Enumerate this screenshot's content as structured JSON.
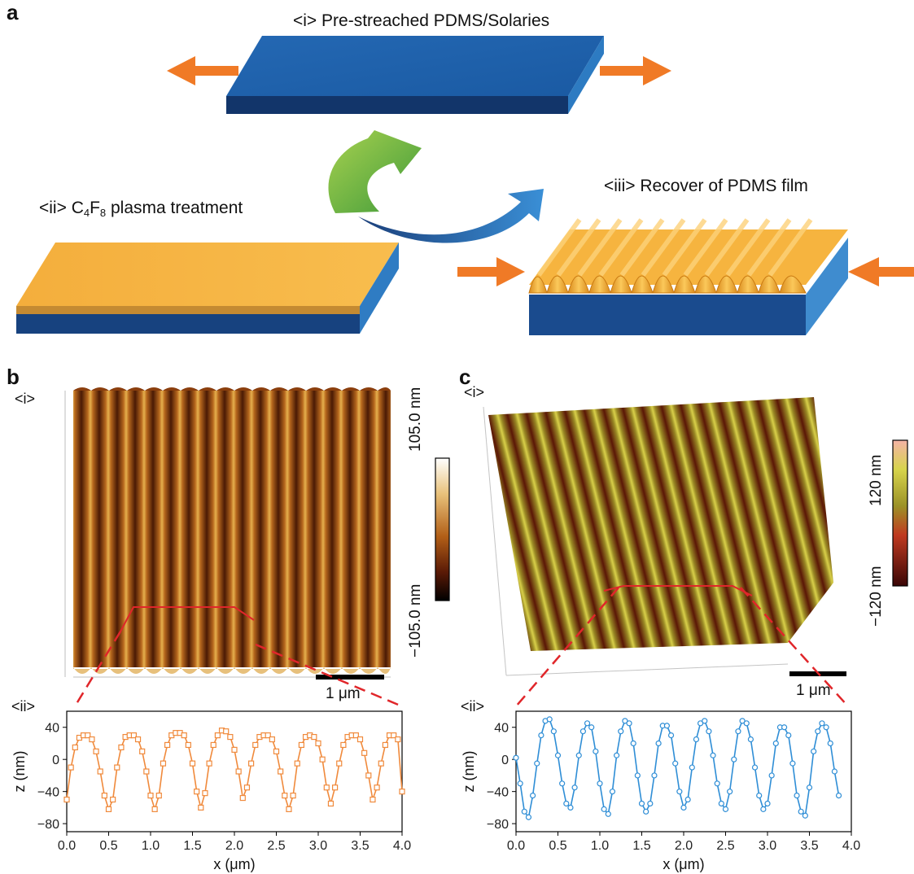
{
  "panels": {
    "a": {
      "letter": "a",
      "step1": "<i> Pre-streached PDMS/Solaries",
      "step2_prefix": "<ii> C",
      "step2_sub1": "4",
      "step2_mid": "F",
      "step2_sub2": "8",
      "step2_suffix": " plasma treatment",
      "step3": "<iii> Recover of PDMS film",
      "colors": {
        "blue_top": "#1d5fa8",
        "blue_side": "#2e76bd",
        "orange": "#f7b03d",
        "arrow": "#f07a26",
        "green": "#8cc63f"
      }
    },
    "b": {
      "letter": "b",
      "afm_tag": "<i>",
      "profile_tag": "<ii>",
      "cbar_max": "105.0 nm",
      "cbar_min": "−105.0 nm",
      "scalebar": "1 μm"
    },
    "c": {
      "letter": "c",
      "afm_tag": "<i>",
      "profile_tag": "<ii>",
      "cbar_max": "120 nm",
      "cbar_min": "−120 nm",
      "scalebar": "1 μm"
    }
  },
  "chart_data": [
    {
      "type": "line",
      "panel": "b <ii>",
      "color": "#f08a3c",
      "marker": "square",
      "x": [
        0.0,
        0.05,
        0.1,
        0.15,
        0.2,
        0.25,
        0.3,
        0.35,
        0.4,
        0.45,
        0.5,
        0.55,
        0.6,
        0.65,
        0.7,
        0.75,
        0.8,
        0.85,
        0.9,
        0.95,
        1.0,
        1.05,
        1.1,
        1.15,
        1.2,
        1.25,
        1.3,
        1.35,
        1.4,
        1.45,
        1.5,
        1.55,
        1.6,
        1.65,
        1.7,
        1.75,
        1.8,
        1.85,
        1.9,
        1.95,
        2.0,
        2.05,
        2.1,
        2.15,
        2.2,
        2.25,
        2.3,
        2.35,
        2.4,
        2.45,
        2.5,
        2.55,
        2.6,
        2.65,
        2.7,
        2.75,
        2.8,
        2.85,
        2.9,
        2.95,
        3.0,
        3.05,
        3.1,
        3.15,
        3.2,
        3.25,
        3.3,
        3.35,
        3.4,
        3.45,
        3.5,
        3.55,
        3.6,
        3.65,
        3.7,
        3.75,
        3.8,
        3.85,
        3.9,
        3.95,
        4.0
      ],
      "y": [
        -50,
        -10,
        15,
        27,
        30,
        30,
        25,
        10,
        -15,
        -45,
        -62,
        -50,
        -10,
        15,
        28,
        30,
        30,
        25,
        10,
        -15,
        -45,
        -62,
        -45,
        -5,
        18,
        30,
        33,
        33,
        30,
        18,
        -5,
        -40,
        -60,
        -42,
        -5,
        18,
        30,
        36,
        35,
        28,
        12,
        -15,
        -48,
        -35,
        -5,
        18,
        28,
        30,
        30,
        25,
        10,
        -15,
        -45,
        -62,
        -45,
        -5,
        18,
        28,
        30,
        28,
        20,
        0,
        -35,
        -55,
        -35,
        -5,
        18,
        28,
        30,
        30,
        25,
        8,
        -20,
        -50,
        -35,
        -5,
        18,
        30,
        30,
        25,
        -40
      ],
      "xlabel": "x (μm)",
      "ylabel": "z (nm)",
      "xlim": [
        0,
        4.0
      ],
      "ylim": [
        -90,
        60
      ],
      "xticks": [
        "0.0",
        "0.5",
        "1.0",
        "1.5",
        "2.0",
        "2.5",
        "3.0",
        "3.5",
        "4.0"
      ],
      "yticks": [
        "40",
        "0",
        "−40",
        "−80"
      ]
    },
    {
      "type": "line",
      "panel": "c <ii>",
      "color": "#2f8ed6",
      "marker": "circle",
      "x": [
        0.0,
        0.05,
        0.1,
        0.15,
        0.2,
        0.25,
        0.3,
        0.35,
        0.4,
        0.45,
        0.5,
        0.55,
        0.6,
        0.65,
        0.7,
        0.75,
        0.8,
        0.85,
        0.9,
        0.95,
        1.0,
        1.05,
        1.1,
        1.15,
        1.2,
        1.25,
        1.3,
        1.35,
        1.4,
        1.45,
        1.5,
        1.55,
        1.6,
        1.65,
        1.7,
        1.75,
        1.8,
        1.85,
        1.9,
        1.95,
        2.0,
        2.05,
        2.1,
        2.15,
        2.2,
        2.25,
        2.3,
        2.35,
        2.4,
        2.45,
        2.5,
        2.55,
        2.6,
        2.65,
        2.7,
        2.75,
        2.8,
        2.85,
        2.9,
        2.95,
        3.0,
        3.05,
        3.1,
        3.15,
        3.2,
        3.25,
        3.3,
        3.35,
        3.4,
        3.45,
        3.5,
        3.55,
        3.6,
        3.65,
        3.7,
        3.75,
        3.8,
        3.85
      ],
      "y": [
        2,
        -30,
        -65,
        -72,
        -45,
        -5,
        30,
        48,
        50,
        35,
        5,
        -30,
        -55,
        -60,
        -35,
        5,
        35,
        45,
        40,
        10,
        -30,
        -62,
        -68,
        -40,
        5,
        35,
        48,
        45,
        20,
        -20,
        -55,
        -65,
        -55,
        -20,
        20,
        42,
        42,
        30,
        -5,
        -40,
        -60,
        -50,
        -10,
        25,
        45,
        48,
        35,
        5,
        -30,
        -55,
        -62,
        -40,
        0,
        35,
        48,
        45,
        25,
        -10,
        -45,
        -62,
        -55,
        -20,
        20,
        40,
        40,
        30,
        -5,
        -45,
        -65,
        -70,
        -35,
        10,
        35,
        45,
        40,
        20,
        -15,
        -45
      ],
      "xlabel": "x (μm)",
      "ylabel": "z (nm)",
      "xlim": [
        0,
        4.0
      ],
      "ylim": [
        -90,
        60
      ],
      "xticks": [
        "0.0",
        "0.5",
        "1.0",
        "1.5",
        "2.0",
        "2.5",
        "3.0",
        "3.5",
        "4.0"
      ],
      "yticks": [
        "40",
        "0",
        "−40",
        "−80"
      ]
    }
  ]
}
